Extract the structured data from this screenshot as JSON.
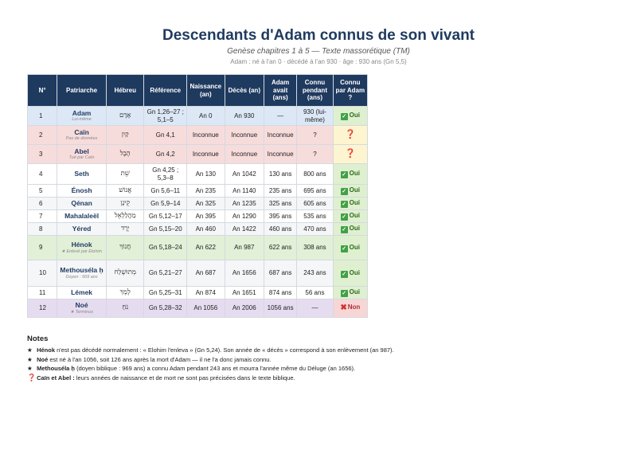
{
  "title": "Descendants d'Adam connus de son vivant",
  "subtitle": "Genèse chapitres 1 à 5 — Texte massorétique (TM)",
  "meta": "Adam : né à l'an 0 · décédé à l'an 930 · âge : 930 ans (Gn 5,5)",
  "headers": {
    "num": "N°",
    "patriarch": "Patriarche",
    "hebrew": "Hébreu",
    "reference": "Référence",
    "birth": "Naissance (an)",
    "death": "Décès (an)",
    "adam_age": "Adam avait (ans)",
    "known_during": "Connu pendant (ans)",
    "known_by_adam": "Connu par Adam ?"
  },
  "rows": [
    {
      "num": "1",
      "name": "Adam",
      "note": "Lui-même",
      "hebrew": "אָדָם",
      "ref": "Gn 1,26–27 ; 5,1–5",
      "birth": "An 0",
      "death": "An 930",
      "age": "—",
      "known": "930 (lui-même)",
      "status": "Oui",
      "status_type": "yes"
    },
    {
      "num": "2",
      "name": "Caïn",
      "note": "Pas de données",
      "hebrew": "קַיִן",
      "ref": "Gn 4,1",
      "birth": "Inconnue",
      "death": "Inconnue",
      "age": "Inconnue",
      "known": "?",
      "status": "❓",
      "status_type": "unk"
    },
    {
      "num": "3",
      "name": "Abel",
      "note": "Tué par Caïn",
      "hebrew": "הֶבֶל",
      "ref": "Gn 4,2",
      "birth": "Inconnue",
      "death": "Inconnue",
      "age": "Inconnue",
      "known": "?",
      "status": "❓",
      "status_type": "unk"
    },
    {
      "num": "4",
      "name": "Seth",
      "note": "",
      "hebrew": "שֵׁת",
      "ref": "Gn 4,25 ; 5,3–8",
      "birth": "An 130",
      "death": "An 1042",
      "age": "130 ans",
      "known": "800 ans",
      "status": "Oui",
      "status_type": "yes"
    },
    {
      "num": "5",
      "name": "Énosh",
      "note": "",
      "hebrew": "אֱנוֹשׁ",
      "ref": "Gn 5,6–11",
      "birth": "An 235",
      "death": "An 1140",
      "age": "235 ans",
      "known": "695 ans",
      "status": "Oui",
      "status_type": "yes"
    },
    {
      "num": "6",
      "name": "Qénan",
      "note": "",
      "hebrew": "קֵינָן",
      "ref": "Gn 5,9–14",
      "birth": "An 325",
      "death": "An 1235",
      "age": "325 ans",
      "known": "605 ans",
      "status": "Oui",
      "status_type": "yes"
    },
    {
      "num": "7",
      "name": "Mahalaleël",
      "note": "",
      "hebrew": "מַהֲלַלְאֵל",
      "ref": "Gn 5,12–17",
      "birth": "An 395",
      "death": "An 1290",
      "age": "395 ans",
      "known": "535 ans",
      "status": "Oui",
      "status_type": "yes"
    },
    {
      "num": "8",
      "name": "Yéred",
      "note": "",
      "hebrew": "יֶרֶד",
      "ref": "Gn 5,15–20",
      "birth": "An 460",
      "death": "An 1422",
      "age": "460 ans",
      "known": "470 ans",
      "status": "Oui",
      "status_type": "yes"
    },
    {
      "num": "9",
      "name": "Hénok",
      "note": "★ Enlevé par Elohim",
      "hebrew": "חֲנוֹךְ",
      "ref": "Gn 5,18–24",
      "birth": "An 622",
      "death": "An 987",
      "age": "622 ans",
      "known": "308 ans",
      "status": "Oui",
      "status_type": "yes"
    },
    {
      "num": "10",
      "name": "Methouséla ḥ",
      "note": "Doyen : 969 ans",
      "hebrew": "מְתוּשֶׁלַח",
      "ref": "Gn 5,21–27",
      "birth": "An 687",
      "death": "An 1656",
      "age": "687 ans",
      "known": "243 ans",
      "status": "Oui",
      "status_type": "yes"
    },
    {
      "num": "11",
      "name": "Lémek",
      "note": "",
      "hebrew": "לֶמֶךְ",
      "ref": "Gn 5,25–31",
      "birth": "An 874",
      "death": "An 1651",
      "age": "874 ans",
      "known": "56 ans",
      "status": "Oui",
      "status_type": "yes"
    },
    {
      "num": "12",
      "name": "Noé",
      "note": "★ Terminus",
      "hebrew": "נֹחַ",
      "ref": "Gn 5,28–32",
      "birth": "An 1056",
      "death": "An 2006",
      "age": "1056 ans",
      "known": "—",
      "status": "Non",
      "status_type": "no"
    }
  ],
  "notes_title": "Notes",
  "notes": [
    {
      "marker": "★",
      "bold": "Hénok",
      "text": " n'est pas décédé normalement : « Elohim l'enleva » (Gn 5,24). Son année de « décès » correspond à son enlèvement (an 987)."
    },
    {
      "marker": "★",
      "bold": "Noé",
      "text": " est né à l'an 1056, soit 126 ans après la mort d'Adam — il ne l'a donc jamais connu."
    },
    {
      "marker": "★",
      "bold": "Methouséla ḥ",
      "text": " (doyen biblique : 969 ans) a connu Adam pendant 243 ans et mourra l'année même du Déluge (an 1656)."
    },
    {
      "marker": "❓",
      "bold": "Caïn et Abel :",
      "text": " leurs années de naissance et de mort ne sont pas précisées dans le texte biblique."
    }
  ],
  "colors": {
    "header_bg": "#1f3a5f",
    "yes": "#2b6a1b",
    "no": "#b03030",
    "unknown": "#c0392b"
  }
}
